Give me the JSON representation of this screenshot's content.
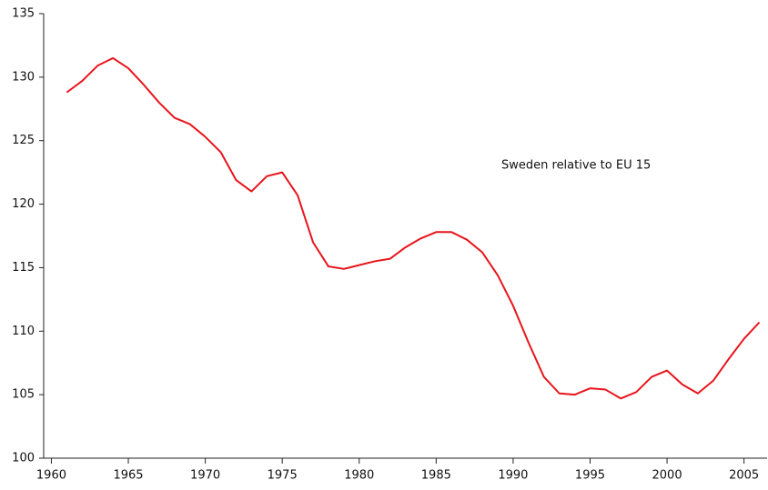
{
  "chart_data": {
    "type": "line",
    "annotation": "Sweden relative to EU 15",
    "x": [
      1961,
      1962,
      1963,
      1964,
      1965,
      1966,
      1967,
      1968,
      1969,
      1970,
      1971,
      1972,
      1973,
      1974,
      1975,
      1976,
      1977,
      1978,
      1979,
      1980,
      1981,
      1982,
      1983,
      1984,
      1985,
      1986,
      1987,
      1988,
      1989,
      1990,
      1991,
      1992,
      1993,
      1994,
      1995,
      1996,
      1997,
      1998,
      1999,
      2000,
      2001,
      2002,
      2003,
      2004,
      2005,
      2006
    ],
    "series": [
      {
        "color": "#e8141b",
        "values": [
          128.8,
          129.7,
          130.9,
          131.5,
          130.7,
          129.4,
          128.0,
          126.8,
          126.3,
          125.3,
          124.1,
          121.9,
          121.0,
          122.2,
          122.5,
          120.7,
          117.0,
          115.1,
          114.9,
          115.2,
          115.5,
          115.7,
          116.6,
          117.3,
          117.8,
          117.8,
          117.2,
          116.2,
          114.4,
          112.0,
          109.1,
          106.4,
          105.1,
          105.0,
          105.5,
          105.4,
          104.7,
          105.2,
          106.4,
          106.9,
          105.8,
          105.1,
          106.1,
          107.8,
          109.4,
          110.7
        ]
      }
    ],
    "xlim": [
      1959.5,
      2006.5
    ],
    "xticks": [
      1960,
      1965,
      1970,
      1975,
      1980,
      1985,
      1990,
      1995,
      2000,
      2005
    ],
    "ylim": [
      100,
      135
    ],
    "yticks": [
      100,
      105,
      110,
      115,
      120,
      125,
      130,
      135
    ],
    "grid": false
  }
}
